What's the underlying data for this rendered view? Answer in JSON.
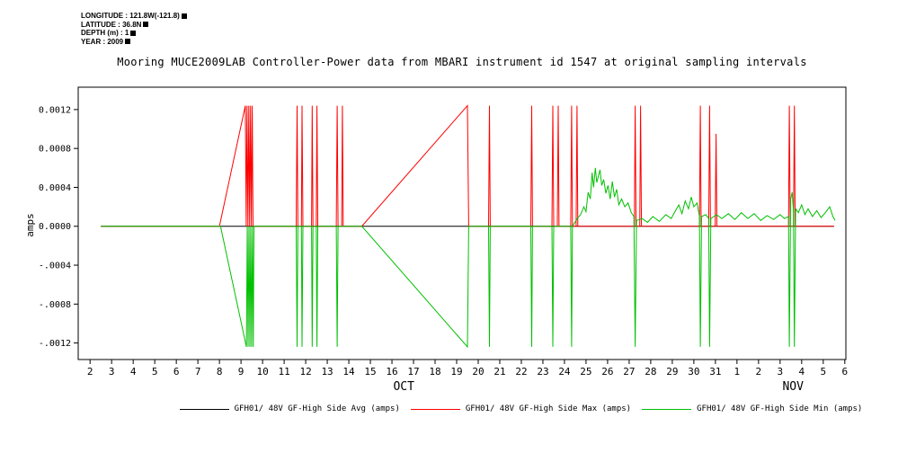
{
  "metadata": {
    "lines": [
      {
        "text": "LONGITUDE : 121.8W(-121.8)"
      },
      {
        "text": "LATITUDE : 36.8N"
      },
      {
        "text": "DEPTH (m) : 1"
      },
      {
        "text": "YEAR : 2009"
      }
    ]
  },
  "chart_data": {
    "type": "line",
    "title": "Mooring MUCE2009LAB Controller-Power data from MBARI instrument id 1547 at original sampling intervals",
    "xlabel": "",
    "ylabel": "amps",
    "x_unit": "day of month (Oct 2 - Nov 6, 2009; x values 32-37 represent Nov 1-6)",
    "xlim": [
      1.45,
      37.05
    ],
    "ylim": [
      -0.00137,
      0.00143
    ],
    "grid": false,
    "legend_position": "bottom",
    "x_tick_values": [
      2,
      3,
      4,
      5,
      6,
      7,
      8,
      9,
      10,
      11,
      12,
      13,
      14,
      15,
      16,
      17,
      18,
      19,
      20,
      21,
      22,
      23,
      24,
      25,
      26,
      27,
      28,
      29,
      30,
      31,
      32,
      33,
      34,
      35,
      36,
      37
    ],
    "x_tick_labels": [
      "2",
      "3",
      "4",
      "5",
      "6",
      "7",
      "8",
      "9",
      "10",
      "11",
      "12",
      "13",
      "14",
      "15",
      "16",
      "17",
      "18",
      "19",
      "20",
      "21",
      "22",
      "23",
      "24",
      "25",
      "26",
      "27",
      "28",
      "29",
      "30",
      "31",
      "1",
      "2",
      "3",
      "4",
      "5",
      "6"
    ],
    "y_tick_values": [
      0.0012,
      0.0008,
      0.0004,
      0.0,
      -0.0004,
      -0.0008,
      -0.0012
    ],
    "y_tick_labels": [
      "0.0012",
      "0.0008",
      "0.0004",
      "0.0000",
      "-.0004",
      "-.0008",
      "-.0012"
    ],
    "month_labels": [
      {
        "label": "OCT",
        "x": 16.55
      },
      {
        "label": "NOV",
        "x": 34.6
      }
    ],
    "series": [
      {
        "name": "GFH01/ 48V GF-High Side Avg (amps)",
        "color": "#000000",
        "points": [
          [
            2.5,
            0
          ],
          [
            36.5,
            0
          ]
        ]
      },
      {
        "name": "GFH01/ 48V GF-High Side Max (amps)",
        "color": "#ff0000",
        "points": [
          [
            2.5,
            0
          ],
          [
            8.0,
            0
          ],
          [
            9.2,
            0.00124
          ],
          [
            9.24,
            0
          ],
          [
            9.28,
            0.00124
          ],
          [
            9.32,
            0
          ],
          [
            9.36,
            0.00124
          ],
          [
            9.4,
            0
          ],
          [
            9.44,
            0.00124
          ],
          [
            9.48,
            0
          ],
          [
            9.52,
            0.00124
          ],
          [
            9.56,
            0
          ],
          [
            11.56,
            0
          ],
          [
            11.6,
            0.00124
          ],
          [
            11.64,
            0
          ],
          [
            11.8,
            0
          ],
          [
            11.83,
            0.00124
          ],
          [
            11.87,
            0
          ],
          [
            12.27,
            0
          ],
          [
            12.3,
            0.00124
          ],
          [
            12.34,
            0
          ],
          [
            12.49,
            0
          ],
          [
            12.52,
            0.00124
          ],
          [
            12.56,
            0
          ],
          [
            13.42,
            0
          ],
          [
            13.46,
            0.00124
          ],
          [
            13.5,
            0
          ],
          [
            13.67,
            0
          ],
          [
            13.7,
            0.00124
          ],
          [
            13.74,
            0
          ],
          [
            14.6,
            0
          ],
          [
            19.5,
            0.00124
          ],
          [
            19.56,
            0
          ],
          [
            20.48,
            0
          ],
          [
            20.52,
            0.00124
          ],
          [
            20.56,
            0
          ],
          [
            22.44,
            0
          ],
          [
            22.48,
            0.00124
          ],
          [
            22.52,
            0
          ],
          [
            23.42,
            0
          ],
          [
            23.46,
            0.00124
          ],
          [
            23.5,
            0
          ],
          [
            23.67,
            0
          ],
          [
            23.71,
            0.00124
          ],
          [
            23.75,
            0
          ],
          [
            24.29,
            0
          ],
          [
            24.33,
            0.00124
          ],
          [
            24.37,
            0
          ],
          [
            24.54,
            0
          ],
          [
            24.58,
            0.00124
          ],
          [
            24.62,
            0
          ],
          [
            27.24,
            0
          ],
          [
            27.28,
            0.00124
          ],
          [
            27.32,
            0
          ],
          [
            27.49,
            0
          ],
          [
            27.53,
            0.00124
          ],
          [
            27.57,
            0
          ],
          [
            30.26,
            0
          ],
          [
            30.3,
            0.00124
          ],
          [
            30.34,
            0
          ],
          [
            30.69,
            0
          ],
          [
            30.73,
            0.00124
          ],
          [
            30.77,
            0
          ],
          [
            30.99,
            0
          ],
          [
            31.03,
            0.00095
          ],
          [
            31.07,
            0
          ],
          [
            34.39,
            0
          ],
          [
            34.43,
            0.00124
          ],
          [
            34.47,
            0
          ],
          [
            34.62,
            0
          ],
          [
            34.66,
            0.00124
          ],
          [
            34.7,
            0
          ],
          [
            36.5,
            0
          ]
        ]
      },
      {
        "name": "GFH01/ 48V GF-High Side Min (amps)",
        "color": "#00c000",
        "points": [
          [
            2.5,
            0
          ],
          [
            8.05,
            0
          ],
          [
            9.25,
            -0.00124
          ],
          [
            9.29,
            0
          ],
          [
            9.33,
            -0.00124
          ],
          [
            9.37,
            0
          ],
          [
            9.41,
            -0.00124
          ],
          [
            9.45,
            0
          ],
          [
            9.49,
            -0.00124
          ],
          [
            9.53,
            0
          ],
          [
            9.57,
            -0.00124
          ],
          [
            9.6,
            0
          ],
          [
            11.56,
            0
          ],
          [
            11.6,
            -0.00124
          ],
          [
            11.64,
            0
          ],
          [
            11.8,
            0
          ],
          [
            11.83,
            -0.00124
          ],
          [
            11.87,
            0
          ],
          [
            12.27,
            0
          ],
          [
            12.3,
            -0.00124
          ],
          [
            12.34,
            0
          ],
          [
            12.49,
            0
          ],
          [
            12.52,
            -0.00124
          ],
          [
            12.56,
            0
          ],
          [
            13.42,
            0
          ],
          [
            13.46,
            -0.00124
          ],
          [
            13.5,
            0
          ],
          [
            14.6,
            0
          ],
          [
            19.5,
            -0.00124
          ],
          [
            19.56,
            0
          ],
          [
            20.48,
            0
          ],
          [
            20.52,
            -0.00124
          ],
          [
            20.56,
            0
          ],
          [
            22.44,
            0
          ],
          [
            22.48,
            -0.00124
          ],
          [
            22.52,
            0
          ],
          [
            23.42,
            0
          ],
          [
            23.46,
            -0.00124
          ],
          [
            23.5,
            0
          ],
          [
            24.29,
            0
          ],
          [
            24.33,
            -0.00124
          ],
          [
            24.37,
            0
          ],
          [
            24.6,
            8e-05
          ],
          [
            24.75,
            0.00012
          ],
          [
            24.9,
            0.0002
          ],
          [
            25.0,
            0.00015
          ],
          [
            25.1,
            0.00035
          ],
          [
            25.2,
            0.00028
          ],
          [
            25.28,
            0.00055
          ],
          [
            25.35,
            0.0004
          ],
          [
            25.43,
            0.0006
          ],
          [
            25.5,
            0.00045
          ],
          [
            25.58,
            0.00052
          ],
          [
            25.65,
            0.00058
          ],
          [
            25.73,
            0.00042
          ],
          [
            25.82,
            0.00048
          ],
          [
            25.92,
            0.00034
          ],
          [
            26.02,
            0.00042
          ],
          [
            26.12,
            0.00028
          ],
          [
            26.22,
            0.00046
          ],
          [
            26.32,
            0.0003
          ],
          [
            26.42,
            0.00038
          ],
          [
            26.52,
            0.00022
          ],
          [
            26.65,
            0.00028
          ],
          [
            26.8,
            0.0002
          ],
          [
            26.95,
            0.00024
          ],
          [
            27.1,
            0.00014
          ],
          [
            27.22,
            0.0001
          ],
          [
            27.28,
            -0.00124
          ],
          [
            27.34,
            6e-05
          ],
          [
            27.6,
            8e-05
          ],
          [
            27.85,
            4e-05
          ],
          [
            28.1,
            0.0001
          ],
          [
            28.4,
            5e-05
          ],
          [
            28.7,
            0.00012
          ],
          [
            28.95,
            8e-05
          ],
          [
            29.15,
            0.00016
          ],
          [
            29.3,
            0.00022
          ],
          [
            29.45,
            0.00013
          ],
          [
            29.6,
            0.00026
          ],
          [
            29.75,
            0.00018
          ],
          [
            29.88,
            0.0003
          ],
          [
            30.0,
            0.0002
          ],
          [
            30.15,
            0.00024
          ],
          [
            30.26,
            0.0001
          ],
          [
            30.3,
            -0.00124
          ],
          [
            30.36,
            0.0001
          ],
          [
            30.55,
            0.00012
          ],
          [
            30.69,
            8e-05
          ],
          [
            30.73,
            -0.00124
          ],
          [
            30.79,
            8e-05
          ],
          [
            31.05,
            0.00012
          ],
          [
            31.3,
            8e-05
          ],
          [
            31.6,
            0.00013
          ],
          [
            31.9,
            7e-05
          ],
          [
            32.2,
            0.00014
          ],
          [
            32.5,
            8e-05
          ],
          [
            32.8,
            0.00013
          ],
          [
            33.1,
            6e-05
          ],
          [
            33.4,
            0.00011
          ],
          [
            33.7,
            7e-05
          ],
          [
            34.0,
            0.00012
          ],
          [
            34.2,
            8e-05
          ],
          [
            34.39,
            0.0001
          ],
          [
            34.43,
            -0.00124
          ],
          [
            34.49,
            0.00028
          ],
          [
            34.56,
            0.00035
          ],
          [
            34.62,
            0.00015
          ],
          [
            34.66,
            -0.00124
          ],
          [
            34.72,
            0.00018
          ],
          [
            34.85,
            0.00014
          ],
          [
            35.0,
            0.00022
          ],
          [
            35.15,
            0.00012
          ],
          [
            35.3,
            0.00018
          ],
          [
            35.5,
            0.0001
          ],
          [
            35.7,
            0.00016
          ],
          [
            35.9,
            9e-05
          ],
          [
            36.1,
            0.00014
          ],
          [
            36.3,
            0.0002
          ],
          [
            36.45,
            0.0001
          ],
          [
            36.55,
            6e-05
          ]
        ]
      }
    ]
  },
  "legend": {
    "items": [
      {
        "label": "GFH01/ 48V GF-High Side Avg (amps)",
        "color": "#000000"
      },
      {
        "label": "GFH01/ 48V GF-High Side Max (amps)",
        "color": "#ff0000"
      },
      {
        "label": "GFH01/ 48V GF-High Side Min (amps)",
        "color": "#00c000"
      }
    ]
  }
}
